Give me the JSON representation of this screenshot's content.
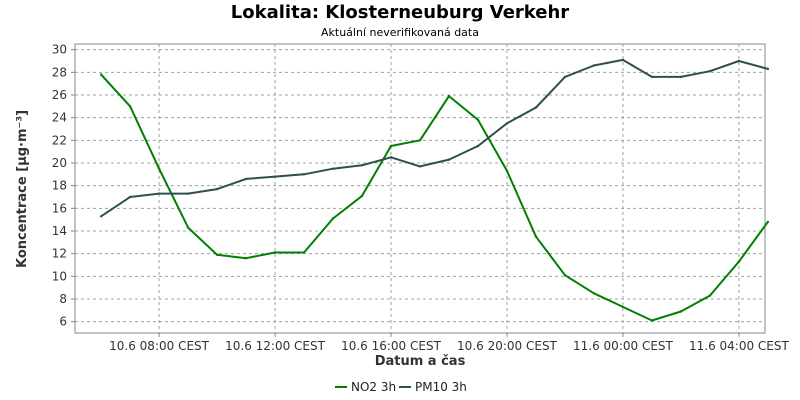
{
  "chart_data": {
    "type": "line",
    "title": "Lokalita: Klosterneuburg Verkehr",
    "subtitle": "Aktuální neverifikovaná data",
    "xlabel": "Datum a čas",
    "ylabel": "Koncentrace [µg·m⁻³]",
    "ylim": [
      5,
      30.5
    ],
    "yticks": [
      6,
      8,
      10,
      12,
      14,
      16,
      18,
      20,
      22,
      24,
      26,
      28,
      30
    ],
    "xlim": [
      5.1,
      28.9
    ],
    "xticks": [
      {
        "hour": 8,
        "label": "10.6 08:00 CEST"
      },
      {
        "hour": 12,
        "label": "10.6 12:00 CEST"
      },
      {
        "hour": 16,
        "label": "10.6 16:00 CEST"
      },
      {
        "hour": 20,
        "label": "10.6 20:00 CEST"
      },
      {
        "hour": 24,
        "label": "11.6 00:00 CEST"
      },
      {
        "hour": 28,
        "label": "11.6 04:00 CEST"
      }
    ],
    "x": [
      6,
      7,
      8,
      9,
      10,
      11,
      12,
      13,
      14,
      15,
      16,
      17,
      18,
      19,
      20,
      21,
      22,
      23,
      24,
      25,
      26,
      27,
      28,
      29
    ],
    "series": [
      {
        "name": "NO2 3h",
        "color": "#008000",
        "values": [
          27.8,
          25.0,
          19.5,
          14.3,
          11.9,
          11.6,
          12.1,
          12.1,
          15.1,
          17.1,
          21.5,
          22.0,
          25.9,
          23.8,
          19.3,
          13.5,
          10.1,
          8.5,
          7.3,
          6.1,
          6.9,
          8.3,
          11.3,
          14.8
        ]
      },
      {
        "name": "PM10 3h",
        "color": "#2f4f4f",
        "values": [
          15.3,
          17.0,
          17.3,
          17.3,
          17.7,
          18.6,
          18.8,
          19.0,
          19.5,
          19.8,
          20.5,
          19.7,
          20.3,
          21.5,
          23.5,
          24.9,
          27.6,
          28.6,
          29.1,
          27.6,
          27.6,
          28.1,
          29.0,
          28.3
        ]
      }
    ],
    "grid": true,
    "legend_position": "bottom-center"
  }
}
